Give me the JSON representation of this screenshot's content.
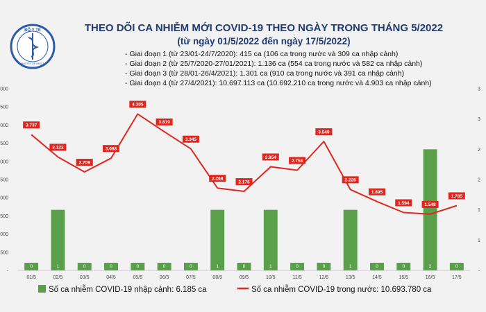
{
  "header": {
    "logo_text": "BỘ Y TẾ",
    "logo_subtext": "MINISTRY OF HEALTH",
    "title": "THEO DÕI CA NHIỄM MỚI COVID-19 THEO NGÀY TRONG THÁNG 5/2022",
    "subtitle": "(từ ngày 01/5/2022 đến ngày 17/5/2022)",
    "notes": [
      "- Giai đoạn 1 (từ 23/01-24/7/2020): 415 ca (106 ca trong nước và 309 ca nhập cảnh)",
      "- Giai đoạn 2 (từ 25/7/2020-27/01/2021): 1.136 ca (554 ca trong nước và 582 ca nhập cảnh)",
      "- Giai đoạn 3 (từ 28/01-26/4/2021): 1.301 ca (910 ca trong nước và 391 ca nhập cảnh)",
      "- Giai đoạn 4 (từ 27/4/2021): 10.697.113 ca (10.692.210 ca trong nước và 4.903 ca nhập cảnh)"
    ]
  },
  "colors": {
    "bar": "#5aa04a",
    "line": "#e0261f",
    "label_bg": "#e0261f",
    "title": "#1f3b70",
    "background": "#f2f2f2"
  },
  "chart_data": {
    "type": "bar+line",
    "categories": [
      "01/5",
      "02/5",
      "03/5",
      "04/5",
      "05/5",
      "06/5",
      "07/5",
      "08/5",
      "09/5",
      "10/5",
      "11/5",
      "12/5",
      "13/5",
      "14/5",
      "15/5",
      "16/5",
      "17/5"
    ],
    "series": [
      {
        "name": "Số ca nhiễm COVID-19 nhập cảnh: 6.185 ca",
        "type": "bar",
        "axis": "right",
        "values": [
          0,
          1,
          0,
          0,
          0,
          0,
          0,
          1,
          0,
          1,
          0,
          0,
          1,
          0,
          0,
          2,
          0
        ],
        "labels": [
          "0",
          "1",
          "0",
          "0",
          "0",
          "0",
          "0",
          "1",
          "0",
          "1",
          "0",
          "0",
          "1",
          "0",
          "0",
          "2",
          "0"
        ]
      },
      {
        "name": "Số ca nhiễm COVID-19 trong nước: 10.693.780 ca",
        "type": "line",
        "axis": "left",
        "values": [
          3737,
          3122,
          2709,
          3088,
          4305,
          3819,
          3345,
          2268,
          2175,
          2854,
          2758,
          3549,
          2226,
          1895,
          1594,
          1548,
          1785
        ],
        "labels": [
          "3.737",
          "3.122",
          "2.709",
          "3.088",
          "4.305",
          "3.819",
          "3.345",
          "2.268",
          "2.175",
          "2.854",
          "2.758",
          "3.549",
          "2.226",
          "1.895",
          "1.594",
          "1.548",
          "1.785"
        ]
      }
    ],
    "left_axis": {
      "ylim": [
        0,
        5000
      ],
      "ticks": [
        0,
        500,
        1000,
        1500,
        2000,
        2500,
        3000,
        3500,
        4000,
        4500,
        5000
      ],
      "tick_labels": [
        "-",
        "500",
        "1.000",
        "1.500",
        "2.000",
        "2.500",
        "3.000",
        "3.500",
        "4.000",
        "4.500",
        "5.000"
      ]
    },
    "right_axis": {
      "ylim": [
        0,
        3
      ],
      "ticks": [
        0,
        0.5,
        1,
        1.5,
        2,
        2.5,
        3
      ],
      "tick_labels": [
        "-",
        "1",
        "1",
        "2",
        "2",
        "3",
        "3"
      ]
    },
    "grid": false,
    "legend_position": "bottom"
  }
}
